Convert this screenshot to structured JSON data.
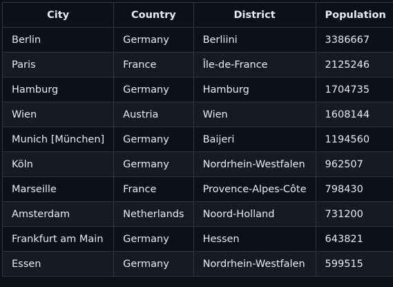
{
  "table": {
    "columns": [
      "City",
      "Country",
      "District",
      "Population"
    ],
    "rows": [
      [
        "Berlin",
        "Germany",
        "Berliini",
        "3386667"
      ],
      [
        "Paris",
        "France",
        "Île-de-France",
        "2125246"
      ],
      [
        "Hamburg",
        "Germany",
        "Hamburg",
        "1704735"
      ],
      [
        "Wien",
        "Austria",
        "Wien",
        "1608144"
      ],
      [
        "Munich [München]",
        "Germany",
        "Baijeri",
        "1194560"
      ],
      [
        "Köln",
        "Germany",
        "Nordrhein-Westfalen",
        "962507"
      ],
      [
        "Marseille",
        "France",
        "Provence-Alpes-Côte",
        "798430"
      ],
      [
        "Amsterdam",
        "Netherlands",
        "Noord-Holland",
        "731200"
      ],
      [
        "Frankfurt am Main",
        "Germany",
        "Hessen",
        "643821"
      ],
      [
        "Essen",
        "Germany",
        "Nordrhein-Westfalen",
        "599515"
      ]
    ]
  }
}
